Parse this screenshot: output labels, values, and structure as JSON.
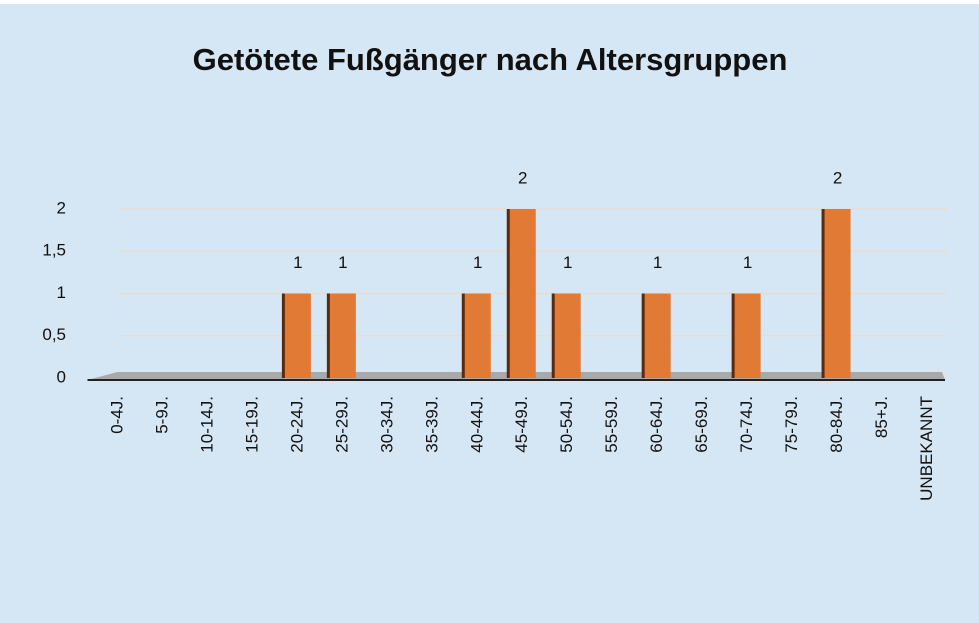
{
  "chart_data": {
    "type": "bar",
    "title": "Getötete Fußgänger nach Altersgruppen",
    "categories": [
      "0-4J.",
      "5-9J.",
      "10-14J.",
      "15-19J.",
      "20-24J.",
      "25-29J.",
      "30-34J.",
      "35-39J.",
      "40-44J.",
      "45-49J.",
      "50-54J.",
      "55-59J.",
      "60-64J.",
      "65-69J.",
      "70-74J.",
      "75-79J.",
      "80-84J.",
      "85+J.",
      "UNBEKANNT"
    ],
    "values": [
      0,
      0,
      0,
      0,
      1,
      1,
      0,
      0,
      1,
      2,
      1,
      0,
      1,
      0,
      1,
      0,
      2,
      0,
      0
    ],
    "color": "#e07a35",
    "ylim": [
      0,
      2
    ],
    "yticks": [
      0,
      {
        "value": 0.5,
        "label": "0,5"
      },
      1,
      {
        "value": 1.5,
        "label": "1,5"
      },
      2
    ],
    "grid": true
  }
}
